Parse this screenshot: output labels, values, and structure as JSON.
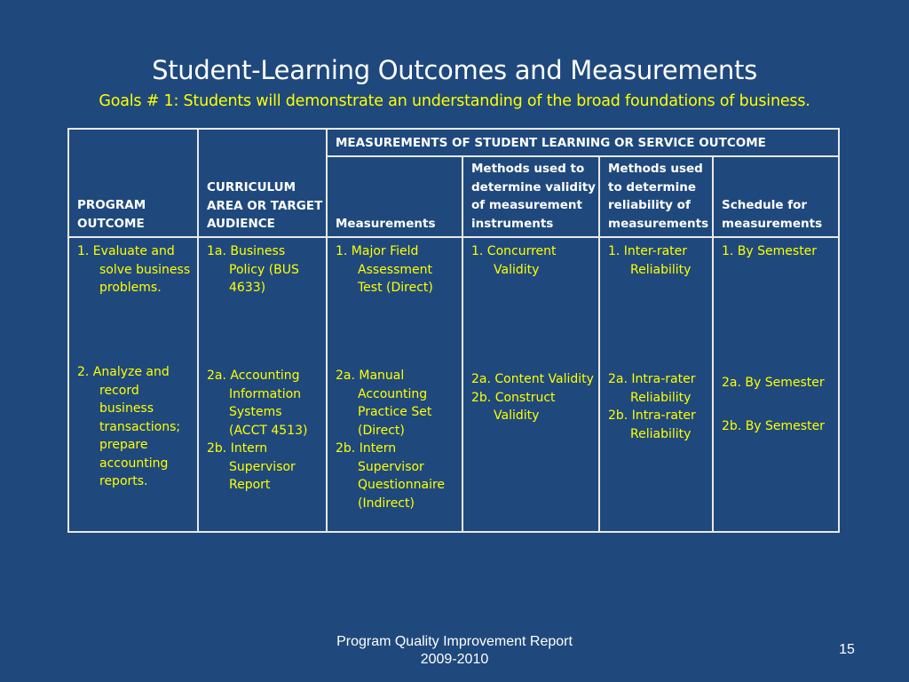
{
  "slide": {
    "title": "Student-Learning Outcomes and Measurements",
    "subtitle": "Goals # 1:  Students will demonstrate an understanding of the broad foundations of business."
  },
  "table": {
    "group_header": "MEASUREMENTS OF STUDENT LEARNING OR SERVICE OUTCOME",
    "headers": {
      "program_outcome": [
        "PROGRAM",
        "OUTCOME"
      ],
      "curriculum": [
        "CURRICULUM",
        "AREA OR TARGET",
        "AUDIENCE"
      ],
      "measurements": [
        "Measurements"
      ],
      "validity": [
        "Methods used to",
        "determine validity",
        "of measurement",
        "instruments"
      ],
      "reliability": [
        "Methods used",
        "to determine",
        "reliability of",
        "measurements"
      ],
      "schedule": [
        "Schedule for",
        "measurements"
      ]
    },
    "row1": {
      "program_outcome": "1.   Evaluate and solve business problems.",
      "curriculum": "1a. Business Policy  (BUS 4633)",
      "measurements": "1. Major Field Assessment Test  (Direct)",
      "validity": "1. Concurrent Validity",
      "reliability": "1. Inter-rater Reliability",
      "schedule": "1. By Semester"
    },
    "row2": {
      "program_outcome": "2. Analyze and record business transactions; prepare accounting reports.",
      "curriculum_a": "2a. Accounting Information Systems (ACCT 4513)",
      "curriculum_b": "2b. Intern Supervisor Report",
      "measurements_a": "2a. Manual Accounting Practice Set (Direct)",
      "measurements_b": "2b. Intern Supervisor Questionnaire (Indirect)",
      "validity_a": "2a. Content Validity",
      "validity_b": "2b. Construct Validity",
      "reliability_a": "2a. Intra-rater Reliability",
      "reliability_b": "2b. Intra-rater Reliability",
      "schedule_a": "2a. By Semester",
      "schedule_b": "2b. By Semester"
    }
  },
  "footer": {
    "line1": "Program Quality Improvement Report",
    "line2": "2009-2010",
    "page_number": "15"
  }
}
